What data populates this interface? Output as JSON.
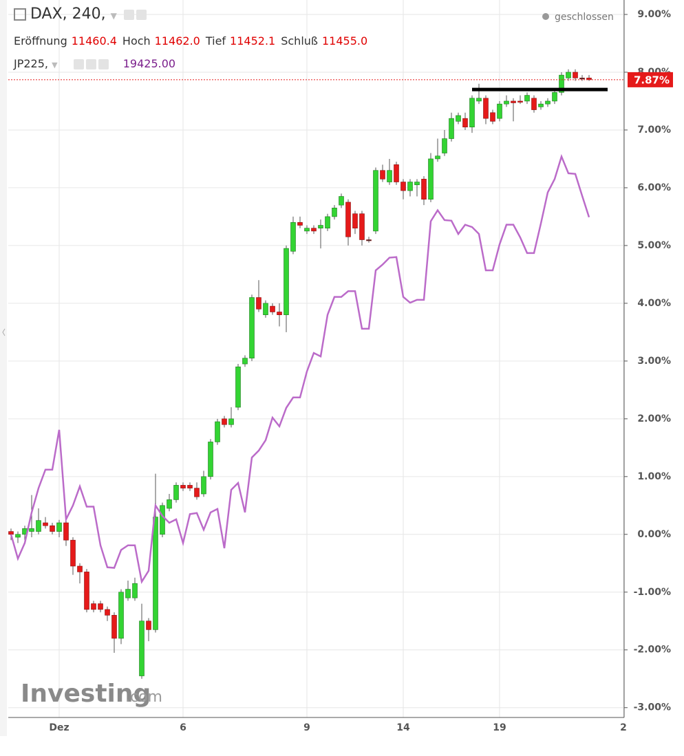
{
  "header": {
    "fields": [
      {
        "label": "Eröffnung",
        "value": "11460.4"
      },
      {
        "label": "Hoch",
        "value": "11462.0"
      },
      {
        "label": "Tief",
        "value": "11452.1"
      },
      {
        "label": "Schluß",
        "value": "11455.0"
      }
    ],
    "compare_value": "19425.00",
    "status": "geschlossen"
  },
  "watermark": {
    "brand": "Investing",
    "suffix": ".com"
  },
  "chart_data": {
    "type": "candlestick",
    "categories": [
      null,
      null,
      null,
      null,
      null,
      null,
      null,
      "Dez",
      null,
      null,
      null,
      null,
      null,
      null,
      null,
      null,
      null,
      null,
      null,
      null,
      null,
      null,
      null,
      null,
      null,
      "6",
      null,
      null,
      null,
      null,
      null,
      null,
      null,
      null,
      null,
      null,
      null,
      null,
      null,
      null,
      null,
      null,
      null,
      "9",
      null,
      null,
      null,
      null,
      null,
      null,
      null,
      null,
      null,
      null,
      null,
      null,
      null,
      "14",
      null,
      null,
      null,
      null,
      null,
      null,
      null,
      null,
      null,
      null,
      null,
      null,
      null,
      "19",
      null,
      null,
      null,
      null,
      null,
      null,
      null,
      null,
      null,
      null,
      null,
      null,
      null,
      null,
      null,
      null,
      null,
      "2"
    ],
    "series": [
      {
        "name": "DAX, 240,",
        "color_up": "#33d433",
        "color_down": "#e51a1a",
        "open": [
          0.05,
          -0.05,
          0,
          0.05,
          0.05,
          0.2,
          0.15,
          0.05,
          0.2,
          -0.1,
          -0.55,
          -0.65,
          -1.2,
          -1.2,
          -1.3,
          -1.4,
          -1.8,
          -1.1,
          -1.1,
          -2.45,
          -1.5,
          -1.65,
          0,
          0.45,
          0.6,
          0.85,
          0.85,
          0.8,
          0.7,
          1.0,
          1.6,
          2.0,
          1.9,
          2.2,
          2.95,
          3.05,
          4.1,
          3.8,
          3.95,
          3.85,
          3.8,
          4.9,
          5.4,
          5.25,
          5.3,
          5.3,
          5.3,
          5.5,
          5.7,
          5.75,
          5.55,
          5.55,
          5.1,
          5.25,
          6.3,
          6.1,
          6.4,
          6.1,
          5.95,
          6.05,
          6.15,
          5.8,
          6.5,
          6.6,
          6.85,
          7.15,
          7.2,
          7.05,
          7.5,
          7.55,
          7.3,
          7.2,
          7.45,
          7.5,
          7.5,
          7.5,
          7.55,
          7.4,
          7.45,
          7.5,
          7.65,
          7.9,
          8.0,
          7.9,
          7.9,
          null,
          null,
          null,
          null,
          null
        ],
        "high": [
          0.1,
          0.05,
          0.15,
          0.68,
          0.45,
          0.3,
          0.2,
          0.25,
          0.25,
          -0.05,
          -0.5,
          -0.6,
          -1.15,
          -1.15,
          -1.25,
          -1.35,
          -0.95,
          -0.8,
          -0.75,
          -1.2,
          -1.45,
          1.05,
          0.55,
          0.7,
          0.9,
          0.9,
          0.9,
          0.9,
          1.1,
          1.65,
          2.0,
          2.05,
          2.2,
          2.95,
          3.1,
          4.15,
          4.4,
          4.05,
          4.0,
          4.0,
          5.0,
          5.5,
          5.5,
          5.35,
          5.35,
          5.45,
          5.55,
          5.7,
          5.9,
          5.8,
          5.6,
          5.6,
          5.15,
          6.35,
          6.4,
          6.5,
          6.45,
          6.15,
          6.15,
          6.15,
          6.2,
          6.6,
          6.85,
          7.0,
          7.3,
          7.3,
          7.3,
          7.6,
          7.8,
          7.6,
          7.35,
          7.5,
          7.6,
          7.55,
          7.6,
          7.65,
          7.6,
          7.5,
          7.55,
          7.7,
          8.0,
          8.05,
          8.05,
          7.95,
          7.95,
          null,
          null,
          null,
          null,
          null
        ],
        "low": [
          -0.1,
          -0.15,
          -0.1,
          -0.05,
          0,
          0.1,
          0,
          -0.05,
          -0.2,
          -0.7,
          -0.85,
          -1.35,
          -1.35,
          -1.35,
          -1.5,
          -2.05,
          -1.9,
          -1.15,
          -1.15,
          -2.5,
          -1.85,
          -1.7,
          -0.05,
          0.4,
          0.55,
          0.75,
          0.75,
          0.6,
          0.65,
          0.95,
          1.55,
          1.85,
          1.85,
          2.15,
          2.9,
          3.0,
          3.85,
          3.75,
          3.8,
          3.6,
          3.5,
          4.85,
          5.3,
          5.2,
          5.2,
          4.95,
          5.25,
          5.45,
          5.65,
          5.0,
          5.2,
          5.0,
          5.05,
          5.2,
          6.1,
          6.05,
          6.05,
          5.8,
          5.85,
          5.85,
          5.7,
          5.75,
          6.45,
          6.55,
          6.8,
          7.1,
          7.0,
          6.95,
          7.45,
          7.1,
          7.1,
          7.15,
          7.4,
          7.15,
          7.45,
          7.45,
          7.3,
          7.35,
          7.4,
          7.45,
          7.6,
          7.85,
          7.85,
          7.85,
          7.85,
          null,
          null,
          null,
          null,
          null
        ],
        "close": [
          0,
          0,
          0.1,
          0.1,
          0.24,
          0.15,
          0.05,
          0.2,
          -0.1,
          -0.55,
          -0.65,
          -1.3,
          -1.3,
          -1.3,
          -1.4,
          -1.8,
          -1.0,
          -0.95,
          -0.85,
          -1.5,
          -1.65,
          0.3,
          0.5,
          0.6,
          0.85,
          0.8,
          0.8,
          0.65,
          1.0,
          1.6,
          1.95,
          1.9,
          2.0,
          2.9,
          3.05,
          4.1,
          3.9,
          4.0,
          3.85,
          3.8,
          4.95,
          5.4,
          5.35,
          5.3,
          5.25,
          5.35,
          5.5,
          5.65,
          5.85,
          5.15,
          5.3,
          5.1,
          5.1,
          6.3,
          6.15,
          6.3,
          6.1,
          5.95,
          6.1,
          6.1,
          5.8,
          6.5,
          6.55,
          6.85,
          7.2,
          7.25,
          7.05,
          7.55,
          7.55,
          7.2,
          7.15,
          7.45,
          7.5,
          7.47,
          7.48,
          7.6,
          7.35,
          7.45,
          7.5,
          7.65,
          7.95,
          8.0,
          7.9,
          7.9,
          7.87,
          null,
          null,
          null,
          null,
          null
        ]
      },
      {
        "name": "JP225,",
        "type": "line",
        "color": "#bb6bc9",
        "values": [
          0,
          -0.42,
          -0.15,
          0.38,
          0.8,
          1.12,
          1.12,
          1.81,
          0.26,
          0.5,
          0.83,
          0.48,
          0.48,
          -0.19,
          -0.57,
          -0.58,
          -0.27,
          -0.19,
          -0.19,
          -0.82,
          -0.63,
          0.5,
          0.32,
          0.2,
          0.26,
          -0.15,
          0.35,
          0.37,
          0.08,
          0.38,
          0.44,
          -0.24,
          0.77,
          0.89,
          0.38,
          1.33,
          1.45,
          1.63,
          2.02,
          1.87,
          2.19,
          2.37,
          2.37,
          2.82,
          3.14,
          3.08,
          3.8,
          4.11,
          4.11,
          4.21,
          4.21,
          3.56,
          3.56,
          4.57,
          4.67,
          4.79,
          4.8,
          4.11,
          4.01,
          4.06,
          4.06,
          5.42,
          5.61,
          5.44,
          5.43,
          5.2,
          5.36,
          5.32,
          5.2,
          4.57,
          4.57,
          5.02,
          5.36,
          5.36,
          5.14,
          4.87,
          4.87,
          5.38,
          5.92,
          6.15,
          6.54,
          6.25,
          6.24,
          5.86,
          5.49,
          null,
          null,
          null,
          null,
          null
        ]
      }
    ],
    "ylim": [
      -3.17,
      9.25
    ],
    "yticks": [
      {
        "value": -3,
        "label": "-3.00%"
      },
      {
        "value": -2,
        "label": "-2.00%"
      },
      {
        "value": -1,
        "label": "-1.00%"
      },
      {
        "value": 0,
        "label": "0.00%"
      },
      {
        "value": 1,
        "label": "1.00%"
      },
      {
        "value": 2,
        "label": "2.00%"
      },
      {
        "value": 3,
        "label": "3.00%"
      },
      {
        "value": 4,
        "label": "4.00%"
      },
      {
        "value": 5,
        "label": "5.00%"
      },
      {
        "value": 6,
        "label": "6.00%"
      },
      {
        "value": 7,
        "label": "7.00%"
      },
      {
        "value": 8,
        "label": "8.00%"
      },
      {
        "value": 9,
        "label": "9.00%"
      }
    ],
    "grid": true,
    "last_price": {
      "value": 7.87,
      "label": "7.87%",
      "color": "#e51a1a"
    },
    "horizontal_line": 7.7
  }
}
